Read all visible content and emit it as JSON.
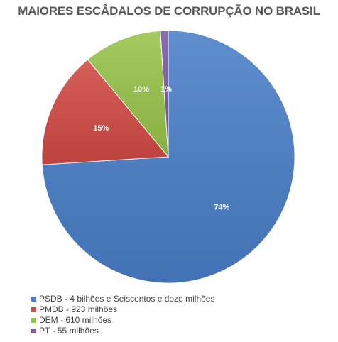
{
  "chart_data": {
    "type": "pie",
    "title": "MAIORES ESCÂDALOS DE CORRUPÇÃO NO BRASIL",
    "slices": [
      {
        "label": "PSDB - 4 bilhões e Seiscentos e doze milhões",
        "value": 74,
        "display": "74%",
        "color": "#4a7fc9"
      },
      {
        "label": "PMDB - 923 milhões",
        "value": 15,
        "display": "15%",
        "color": "#d24a44"
      },
      {
        "label": "DEM - 610 milhões",
        "value": 10,
        "display": "10%",
        "color": "#97c44a"
      },
      {
        "label": "PT - 55 milhões",
        "value": 1,
        "display": "1%",
        "color": "#7b58a8"
      }
    ],
    "legend_position": "bottom-left"
  }
}
